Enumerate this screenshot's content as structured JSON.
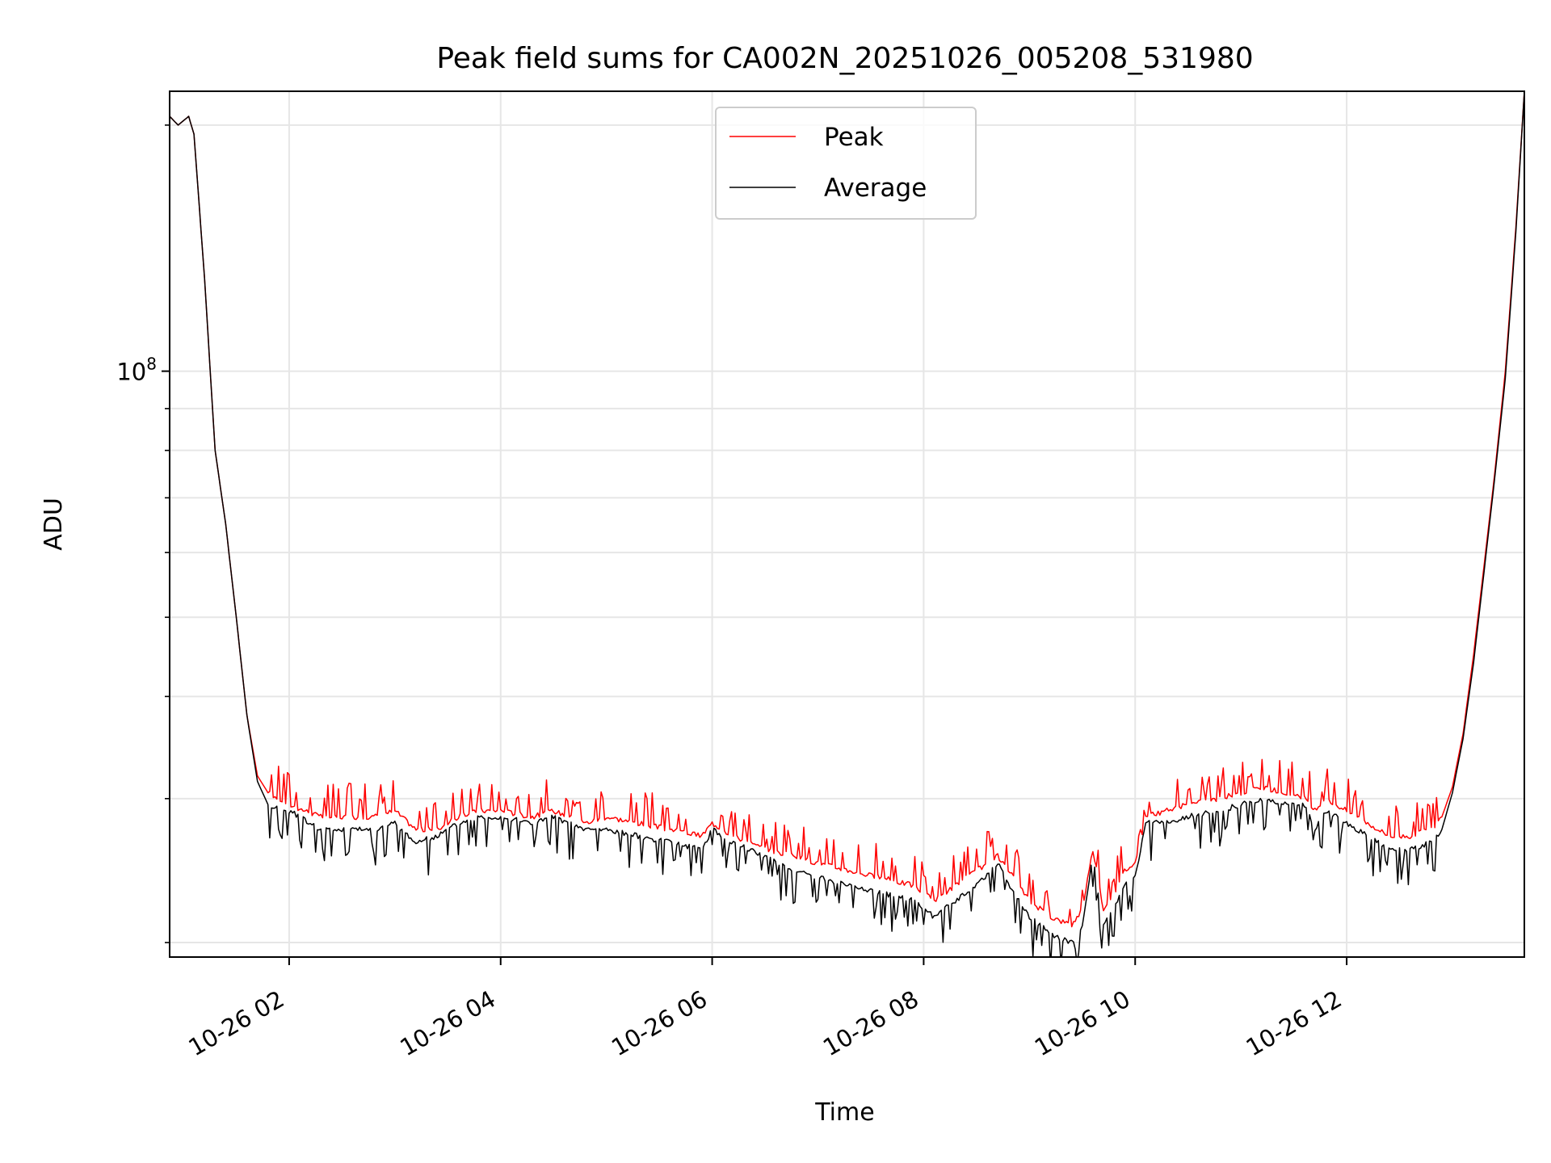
{
  "chart_data": {
    "type": "line",
    "title": "Peak field sums for CA002N_20251026_005208_531980",
    "xlabel": "Time",
    "ylabel": "ADU",
    "yscale": "log",
    "grid": true,
    "legend_position": "top-center",
    "x_unit": "hours after 2025-10-26 00:00",
    "xlim": [
      0.87,
      13.68
    ],
    "ylim": [
      19200000,
      220000000
    ],
    "y_tick_major": {
      "value": 100000000,
      "base": "10",
      "exponent": "8"
    },
    "y_minor_ticks": [
      20000000,
      30000000,
      40000000,
      50000000,
      60000000,
      70000000,
      80000000,
      90000000,
      200000000
    ],
    "x_ticks": [
      {
        "value": 2,
        "label": "10-26 02"
      },
      {
        "value": 4,
        "label": "10-26 04"
      },
      {
        "value": 6,
        "label": "10-26 06"
      },
      {
        "value": 8,
        "label": "10-26 08"
      },
      {
        "value": 10,
        "label": "10-26 10"
      },
      {
        "value": 12,
        "label": "10-26 12"
      }
    ],
    "x": [
      0.87,
      0.95,
      1.05,
      1.1,
      1.2,
      1.3,
      1.4,
      1.5,
      1.6,
      1.7,
      1.8,
      2.0,
      2.3,
      2.5,
      2.8,
      3.0,
      3.2,
      3.4,
      3.6,
      3.8,
      4.0,
      4.3,
      4.5,
      4.8,
      5.0,
      5.3,
      5.6,
      5.9,
      6.0,
      6.2,
      6.5,
      6.8,
      7.0,
      7.3,
      7.6,
      7.9,
      8.1,
      8.3,
      8.5,
      8.7,
      8.85,
      9.0,
      9.2,
      9.4,
      9.5,
      9.6,
      9.7,
      9.8,
      9.9,
      10.0,
      10.1,
      10.3,
      10.5,
      10.8,
      11.0,
      11.2,
      11.4,
      11.6,
      11.7,
      11.8,
      12.0,
      12.2,
      12.4,
      12.6,
      12.8,
      12.9,
      13.0,
      13.1,
      13.2,
      13.3,
      13.4,
      13.5,
      13.6,
      13.68
    ],
    "series": [
      {
        "name": "Peak",
        "color": "#ff0000",
        "values": [
          205000000,
          200000000,
          205000000,
          195000000,
          130000000,
          80000000,
          65000000,
          50000000,
          38000000,
          32000000,
          30500000,
          29500000,
          28500000,
          28500000,
          28500000,
          29000000,
          27500000,
          27500000,
          28500000,
          29000000,
          29000000,
          28500000,
          29000000,
          28000000,
          28500000,
          28000000,
          27500000,
          27000000,
          28000000,
          27000000,
          26000000,
          25500000,
          25000000,
          24500000,
          24000000,
          23500000,
          22500000,
          23500000,
          24500000,
          25500000,
          24000000,
          22500000,
          21500000,
          21000000,
          22000000,
          26000000,
          22000000,
          23000000,
          24500000,
          25000000,
          28500000,
          29000000,
          29500000,
          30000000,
          30500000,
          31000000,
          30500000,
          30000000,
          29000000,
          30000000,
          29000000,
          28000000,
          27000000,
          27000000,
          27500000,
          28500000,
          31000000,
          36000000,
          45000000,
          58000000,
          75000000,
          100000000,
          150000000,
          220000000
        ]
      },
      {
        "name": "Average",
        "color": "#000000",
        "values": [
          205000000,
          200000000,
          205000000,
          195000000,
          130000000,
          80000000,
          65000000,
          50000000,
          38000000,
          31500000,
          29500000,
          29000000,
          27500000,
          27500000,
          27500000,
          28000000,
          26500000,
          27000000,
          28000000,
          28500000,
          28500000,
          28000000,
          28500000,
          27500000,
          27500000,
          27000000,
          26500000,
          26000000,
          27500000,
          26500000,
          25500000,
          24500000,
          24000000,
          23500000,
          23000000,
          22500000,
          21500000,
          22500000,
          23500000,
          25000000,
          23000000,
          21500000,
          20500000,
          20000000,
          21000000,
          25500000,
          21000000,
          22000000,
          23500000,
          24000000,
          28000000,
          28000000,
          28500000,
          29000000,
          29500000,
          30000000,
          29500000,
          29500000,
          27500000,
          29000000,
          28000000,
          27000000,
          26000000,
          26000000,
          26500000,
          27500000,
          30500000,
          35500000,
          44000000,
          57000000,
          74000000,
          98000000,
          148000000,
          220000000
        ]
      }
    ]
  }
}
